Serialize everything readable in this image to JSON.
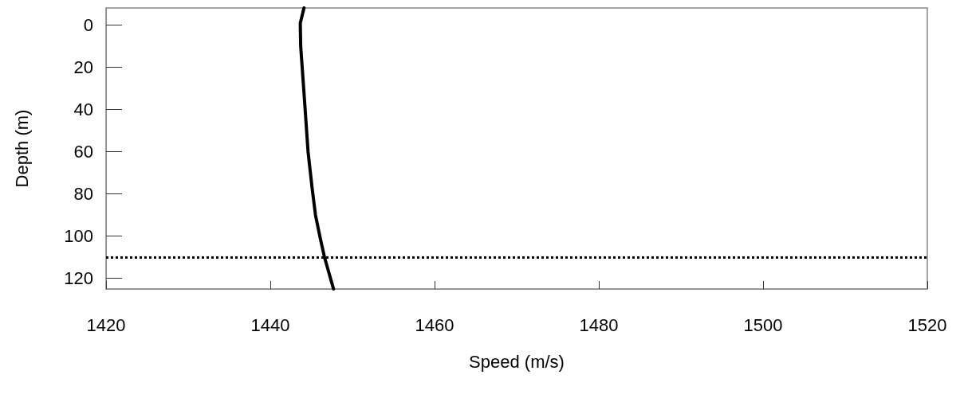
{
  "chart_data": {
    "type": "line",
    "xlabel": "Speed (m/s)",
    "ylabel": "Depth (m)",
    "series": [
      {
        "color": "#000000",
        "x": [
          1444.1,
          1443.65,
          1443.7,
          1444.2,
          1444.6,
          1445.1,
          1445.5,
          1446.1,
          1446.6,
          1447.7
        ],
        "values": [
          -8,
          -0.8,
          10,
          37.6,
          60.2,
          77.5,
          90,
          101.3,
          110,
          125
        ]
      }
    ],
    "xlim": [
      1420,
      1520
    ],
    "xticks": [
      1420,
      1440,
      1460,
      1480,
      1500,
      1520
    ],
    "ylim": [
      125,
      -8
    ],
    "yticks": [
      0,
      20,
      40,
      60,
      80,
      100,
      120
    ],
    "ref_lines": [
      {
        "axis": "y",
        "value": 110,
        "color": "#000000",
        "line_style": "dotted"
      }
    ],
    "marker": "none",
    "line_style": "solid",
    "grid": false
  }
}
